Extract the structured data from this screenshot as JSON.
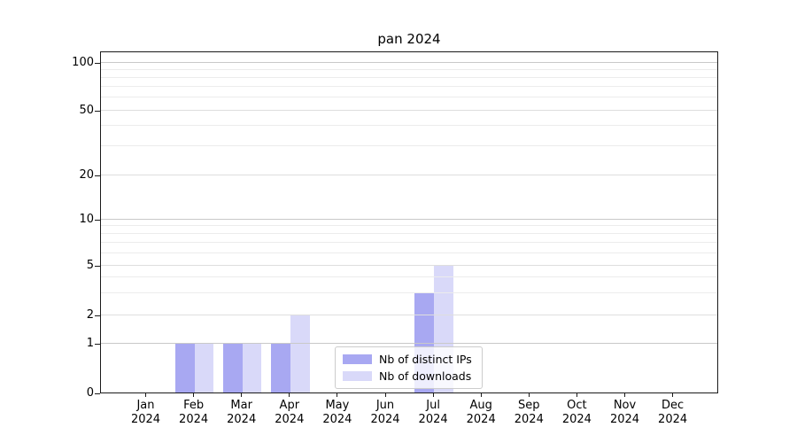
{
  "chart_data": {
    "type": "bar",
    "title": "pan 2024",
    "categories": [
      "Jan",
      "Feb",
      "Mar",
      "Apr",
      "May",
      "Jun",
      "Jul",
      "Aug",
      "Sep",
      "Oct",
      "Nov",
      "Dec"
    ],
    "category_year": "2024",
    "series": [
      {
        "name": "Nb of distinct IPs",
        "color": "#a8a8f2",
        "values": [
          0,
          1,
          1,
          1,
          0,
          0,
          3,
          0,
          0,
          0,
          0,
          0
        ]
      },
      {
        "name": "Nb of downloads",
        "color": "#d9d9f9",
        "values": [
          0,
          1,
          1,
          2,
          0,
          0,
          5,
          0,
          0,
          0,
          0,
          0
        ]
      }
    ],
    "y_ticks": [
      0,
      1,
      2,
      5,
      10,
      20,
      50,
      100
    ],
    "y_scale": "log-like (symlog)",
    "ylim": [
      0,
      118
    ],
    "grid": "horizontal, major and minor",
    "legend_position": "lower center, inside plot",
    "axis_color": "#1a1a1a",
    "grid_major_color": "#c9c9c9",
    "grid_mid_color": "#dedede",
    "grid_minor_color": "#ececec",
    "background_color": "#ffffff"
  }
}
